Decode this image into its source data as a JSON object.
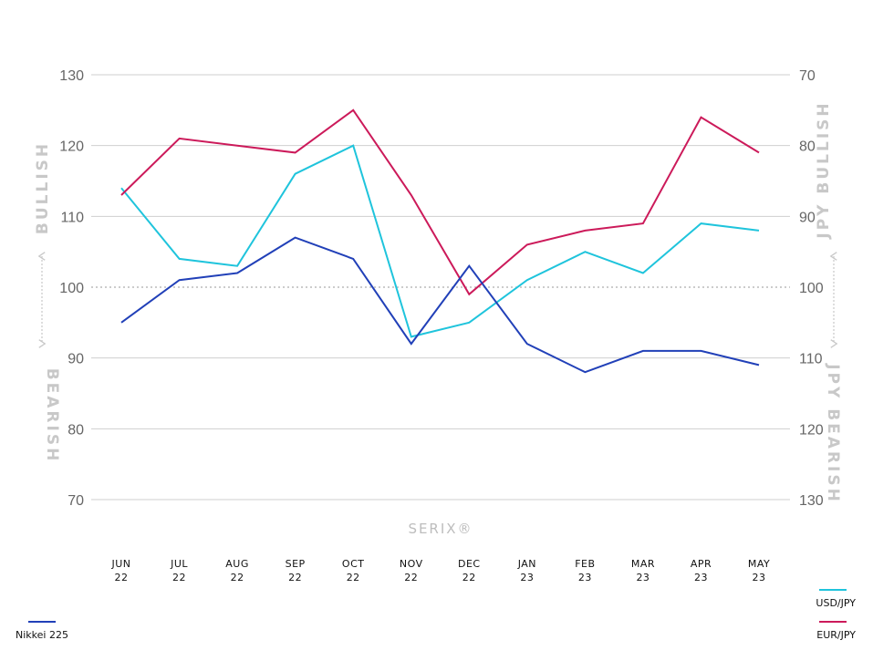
{
  "chart_data": {
    "type": "line",
    "categories": [
      {
        "month": "JUN",
        "year": "22"
      },
      {
        "month": "JUL",
        "year": "22"
      },
      {
        "month": "AUG",
        "year": "22"
      },
      {
        "month": "SEP",
        "year": "22"
      },
      {
        "month": "OCT",
        "year": "22"
      },
      {
        "month": "NOV",
        "year": "22"
      },
      {
        "month": "DEC",
        "year": "22"
      },
      {
        "month": "JAN",
        "year": "23"
      },
      {
        "month": "FEB",
        "year": "23"
      },
      {
        "month": "MAR",
        "year": "23"
      },
      {
        "month": "APR",
        "year": "23"
      },
      {
        "month": "MAY",
        "year": "23"
      }
    ],
    "left_axis": {
      "min": 70,
      "max": 130,
      "ticks": [
        "130",
        "120",
        "110",
        "100",
        "90",
        "80",
        "70"
      ]
    },
    "right_axis": {
      "min": 70,
      "max": 130,
      "inverted": true,
      "ticks": [
        "70",
        "80",
        "90",
        "100",
        "110",
        "120",
        "130"
      ]
    },
    "reference_line": 100,
    "series": [
      {
        "name": "USD/JPY",
        "color": "#1fc4dc",
        "axis": "left",
        "values": [
          114,
          104,
          103,
          116,
          120,
          93,
          95,
          101,
          105,
          102,
          109,
          108
        ]
      },
      {
        "name": "EUR/JPY",
        "color": "#cc1a5a",
        "axis": "left",
        "values": [
          113,
          121,
          120,
          119,
          125,
          113,
          99,
          106,
          108,
          109,
          124,
          119
        ]
      },
      {
        "name": "Nikkei 225",
        "color": "#2140b8",
        "axis": "left",
        "values": [
          95,
          101,
          102,
          107,
          104,
          92,
          103,
          92,
          88,
          91,
          91,
          89
        ]
      }
    ],
    "side_labels": {
      "left_top": "BULLISH",
      "left_bottom": "BEARISH",
      "right_top": "JPY BULLISH",
      "right_bottom": "JPY BEARISH"
    },
    "center_label": "SERIX®",
    "grid": true,
    "legend": "bottom"
  }
}
